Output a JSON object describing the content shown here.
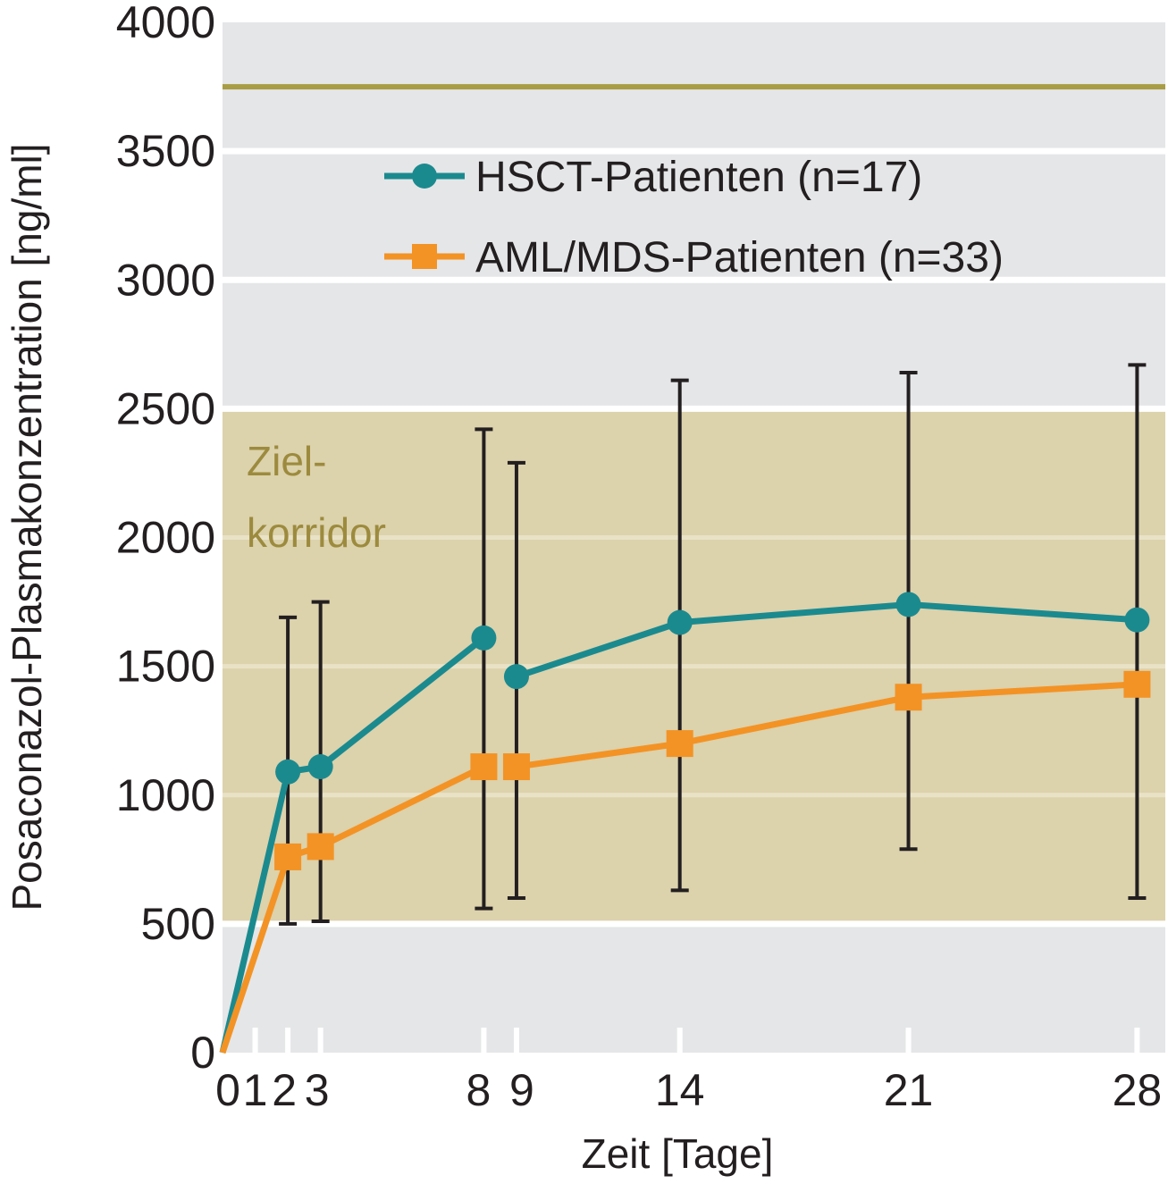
{
  "chart_data": {
    "type": "line",
    "xlabel": "Zeit [Tage]",
    "ylabel": "Posaconazol-Plasmakonzentration [ng/ml]",
    "ylim": [
      0,
      4000
    ],
    "xlim": [
      0,
      29
    ],
    "yticks": [
      0,
      500,
      1000,
      1500,
      2000,
      2500,
      3000,
      3500,
      4000
    ],
    "xticks": [
      {
        "x": 0,
        "label": "0"
      },
      {
        "x": 1,
        "label": "1"
      },
      {
        "x": 2,
        "label": "2"
      },
      {
        "x": 3,
        "label": "3"
      },
      {
        "x": 8,
        "label": "8"
      },
      {
        "x": 9,
        "label": "9"
      },
      {
        "x": 14,
        "label": "14"
      },
      {
        "x": 21,
        "label": "21"
      },
      {
        "x": 28,
        "label": "28"
      }
    ],
    "grid": true,
    "legend_position": "top-right",
    "target_band": {
      "from": 500,
      "to": 2500,
      "label_line1": "Ziel-",
      "label_line2": "korridor",
      "color": "#dcd2ac"
    },
    "reference_line": {
      "y": 3750,
      "color": "#a89c45"
    },
    "series": [
      {
        "name": "HSCT-Patienten (n=17)",
        "color": "#1b8a8f",
        "marker": "circle",
        "segments": [
          [
            {
              "x": 0,
              "y": 0
            },
            {
              "x": 2,
              "y": 1090
            },
            {
              "x": 3,
              "y": 1110
            },
            {
              "x": 8,
              "y": 1610
            }
          ],
          [
            {
              "x": 9,
              "y": 1460
            },
            {
              "x": 14,
              "y": 1670
            },
            {
              "x": 21,
              "y": 1740
            },
            {
              "x": 28,
              "y": 1680
            }
          ]
        ]
      },
      {
        "name": "AML/MDS-Patienten (n=33)",
        "color": "#f39325",
        "marker": "square",
        "segments": [
          [
            {
              "x": 0,
              "y": 0
            },
            {
              "x": 2,
              "y": 760
            },
            {
              "x": 3,
              "y": 800
            },
            {
              "x": 8,
              "y": 1110
            }
          ],
          [
            {
              "x": 9,
              "y": 1110
            },
            {
              "x": 14,
              "y": 1200
            },
            {
              "x": 21,
              "y": 1380
            },
            {
              "x": 28,
              "y": 1430
            }
          ]
        ]
      }
    ],
    "error_bars": [
      {
        "x": 2,
        "low": 500,
        "high": 1690
      },
      {
        "x": 3,
        "low": 510,
        "high": 1750
      },
      {
        "x": 8,
        "low": 560,
        "high": 2420
      },
      {
        "x": 9,
        "low": 600,
        "high": 2290
      },
      {
        "x": 14,
        "low": 630,
        "high": 2610
      },
      {
        "x": 21,
        "low": 790,
        "high": 2640
      },
      {
        "x": 28,
        "low": 600,
        "high": 2670
      }
    ]
  }
}
